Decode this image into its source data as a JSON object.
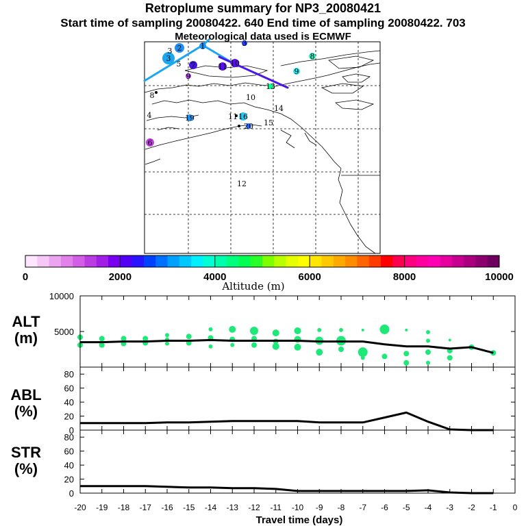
{
  "header": {
    "title": "Retroplume summary for NP3_20080421",
    "sampling_line": "Start time of sampling 20080422.   640     End time of sampling 20080422.   703",
    "met_line": "Meteorological data used is ECMWF"
  },
  "map": {
    "markers": [
      "2",
      "3",
      "5",
      "7",
      "3",
      "9",
      "11",
      "10",
      "1",
      "8",
      "9",
      "3",
      "8",
      "4",
      "13",
      "10",
      "14",
      "19",
      "11",
      "16",
      "15",
      "20",
      "6",
      "12"
    ]
  },
  "colorbar": {
    "label": "Altitude  (m)",
    "ticks": [
      "0",
      "2000",
      "4000",
      "6000",
      "8000",
      "10000"
    ],
    "colors": [
      "#ffe6ff",
      "#f5c8f5",
      "#eba5f0",
      "#e182ea",
      "#d25fe6",
      "#bc3ce4",
      "#a01ee6",
      "#7800f0",
      "#5000f5",
      "#2814ff",
      "#0040ff",
      "#0070ff",
      "#00a0ff",
      "#00c8ff",
      "#00f0ff",
      "#00ffd2",
      "#00ffaa",
      "#00ff7d",
      "#00ff50",
      "#28ff28",
      "#7dff00",
      "#b9ff00",
      "#e6ff00",
      "#ffff00",
      "#ffe600",
      "#ffc800",
      "#ffaa00",
      "#ff8c00",
      "#ff6400",
      "#ff3c00",
      "#ff0000",
      "#ff0050",
      "#ff0080",
      "#ff00a0",
      "#ff00b4",
      "#e600a0",
      "#c80090",
      "#aa0080",
      "#8c0070",
      "#6e0060"
    ]
  },
  "panels": {
    "alt": {
      "label_top": "ALT",
      "label_bottom": "(m)"
    },
    "abl": {
      "label_top": "ABL",
      "label_bottom": "(%)"
    },
    "str": {
      "label_top": "STR",
      "label_bottom": "(%)"
    }
  },
  "chart_data": [
    {
      "type": "line",
      "title": "ALT (m)",
      "ylim": [
        0,
        10000
      ],
      "yticks": [
        "5000",
        "10000"
      ],
      "x": [
        -20,
        -19,
        -18,
        -17,
        -16,
        -15,
        -14,
        -13,
        -12,
        -11,
        -10,
        -9,
        -8,
        -7,
        -6,
        -5,
        -4,
        -3,
        -2,
        -1
      ],
      "values": [
        3500,
        3500,
        3600,
        3600,
        3700,
        3700,
        3800,
        3700,
        3700,
        3700,
        3700,
        3600,
        3600,
        3600,
        3200,
        2900,
        2900,
        2600,
        2800,
        2000
      ],
      "scatter": [
        {
          "x": -20,
          "y": 4200
        },
        {
          "x": -20,
          "y": 3100
        },
        {
          "x": -19,
          "y": 4000
        },
        {
          "x": -19,
          "y": 3100
        },
        {
          "x": -18,
          "y": 4000
        },
        {
          "x": -18,
          "y": 3300
        },
        {
          "x": -17,
          "y": 4000
        },
        {
          "x": -17,
          "y": 3400
        },
        {
          "x": -16,
          "y": 4500
        },
        {
          "x": -16,
          "y": 3900
        },
        {
          "x": -16,
          "y": 3300
        },
        {
          "x": -15,
          "y": 4300
        },
        {
          "x": -15,
          "y": 3400
        },
        {
          "x": -14,
          "y": 5300
        },
        {
          "x": -14,
          "y": 4100
        },
        {
          "x": -14,
          "y": 2900
        },
        {
          "x": -13,
          "y": 5300
        },
        {
          "x": -13,
          "y": 3900
        },
        {
          "x": -13,
          "y": 3100
        },
        {
          "x": -12,
          "y": 5100
        },
        {
          "x": -12,
          "y": 4000
        },
        {
          "x": -12,
          "y": 3100
        },
        {
          "x": -11,
          "y": 4800
        },
        {
          "x": -11,
          "y": 3600
        },
        {
          "x": -11,
          "y": 2900
        },
        {
          "x": -10,
          "y": 5100
        },
        {
          "x": -10,
          "y": 3900
        },
        {
          "x": -10,
          "y": 2800
        },
        {
          "x": -9,
          "y": 5200
        },
        {
          "x": -9,
          "y": 3700
        },
        {
          "x": -9,
          "y": 2100
        },
        {
          "x": -8,
          "y": 5200
        },
        {
          "x": -8,
          "y": 3700
        },
        {
          "x": -8,
          "y": 2500
        },
        {
          "x": -7,
          "y": 5200
        },
        {
          "x": -7,
          "y": 2100
        },
        {
          "x": -7,
          "y": 1300
        },
        {
          "x": -6,
          "y": 5300
        },
        {
          "x": -6,
          "y": 1500
        },
        {
          "x": -5,
          "y": 5200
        },
        {
          "x": -5,
          "y": 1900
        },
        {
          "x": -5,
          "y": 600
        },
        {
          "x": -4,
          "y": 4900
        },
        {
          "x": -4,
          "y": 3700
        },
        {
          "x": -4,
          "y": 2100
        },
        {
          "x": -4,
          "y": 600
        },
        {
          "x": -3,
          "y": 3800
        },
        {
          "x": -3,
          "y": 2300
        },
        {
          "x": -3,
          "y": 1300
        },
        {
          "x": -2,
          "y": 2800
        },
        {
          "x": -1,
          "y": 2000
        }
      ]
    },
    {
      "type": "line",
      "title": "ABL (%)",
      "ylim": [
        0,
        90
      ],
      "yticks": [
        "0",
        "20",
        "40",
        "60",
        "80"
      ],
      "x": [
        -20,
        -19,
        -18,
        -17,
        -16,
        -15,
        -14,
        -13,
        -12,
        -11,
        -10,
        -9,
        -8,
        -7,
        -6,
        -5,
        -4,
        -3,
        -2,
        -1
      ],
      "values": [
        10,
        10,
        10,
        10,
        11,
        11,
        12,
        13,
        13,
        13,
        13,
        11,
        11,
        11,
        18,
        25,
        12,
        1,
        0,
        0
      ]
    },
    {
      "type": "line",
      "title": "STR (%)",
      "ylim": [
        0,
        90
      ],
      "yticks": [
        "0",
        "20",
        "40",
        "60",
        "80"
      ],
      "x": [
        -20,
        -19,
        -18,
        -17,
        -16,
        -15,
        -14,
        -13,
        -12,
        -11,
        -10,
        -9,
        -8,
        -7,
        -6,
        -5,
        -4,
        -3,
        -2,
        -1
      ],
      "values": [
        10,
        10,
        10,
        10,
        9,
        8,
        8,
        7,
        7,
        6,
        3,
        3,
        3,
        3,
        3,
        3,
        4,
        1,
        0,
        0
      ]
    }
  ],
  "xaxis": {
    "label": "Travel time (days)",
    "ticks": [
      "-20",
      "-19",
      "-18",
      "-17",
      "-16",
      "-15",
      "-14",
      "-13",
      "-12",
      "-11",
      "-10",
      "-9",
      "-8",
      "-7",
      "-6",
      "-5",
      "-4",
      "-3",
      "-2",
      "-1",
      "0"
    ]
  }
}
